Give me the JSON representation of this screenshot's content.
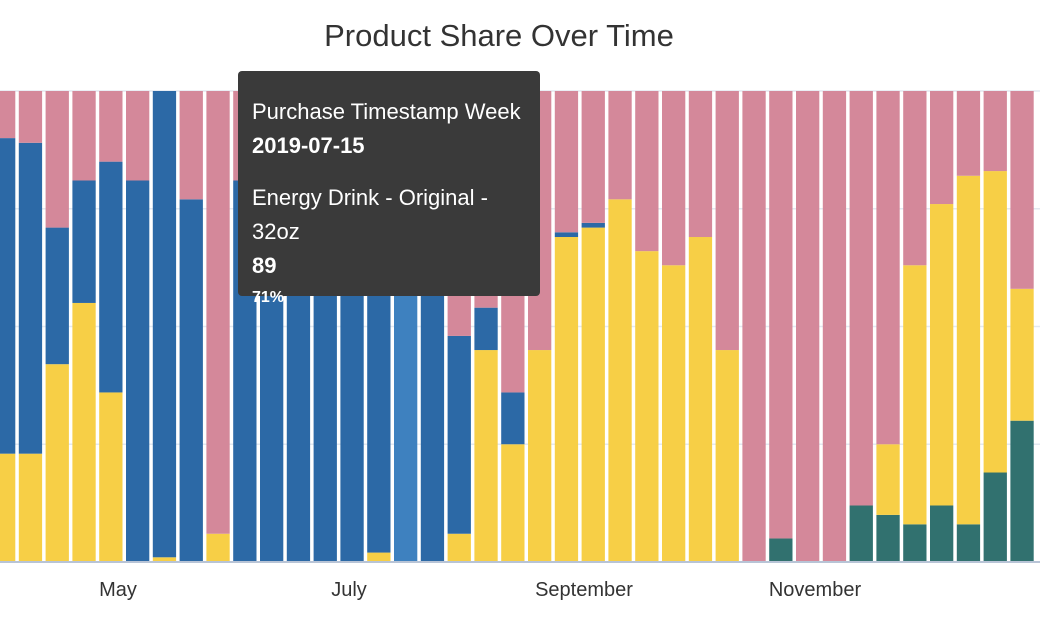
{
  "chart_data": {
    "type": "bar",
    "stacked": "percent",
    "title": "Product Share Over Time",
    "x_tick_labels": [
      "May",
      "July",
      "September",
      "November"
    ],
    "ylim": [
      0,
      100
    ],
    "grid": true,
    "colors": {
      "teal": "#31716f",
      "yellow": "#f7cf46",
      "blue": "#2c69a6",
      "pink": "#d4889a",
      "highlight": "#3e81bf",
      "axis": "#b8c4d6",
      "grid": "#e3e9f1"
    },
    "stack_order": [
      "teal",
      "yellow",
      "blue",
      "pink"
    ],
    "x": [
      "2019-04-01",
      "2019-04-08",
      "2019-04-15",
      "2019-04-22",
      "2019-04-29",
      "2019-05-06",
      "2019-05-13",
      "2019-05-20",
      "2019-05-27",
      "2019-06-03",
      "2019-06-10",
      "2019-06-17",
      "2019-06-24",
      "2019-07-01",
      "2019-07-08",
      "2019-07-15",
      "2019-07-22",
      "2019-07-29",
      "2019-08-05",
      "2019-08-12",
      "2019-08-19",
      "2019-08-26",
      "2019-09-02",
      "2019-09-09",
      "2019-09-16",
      "2019-09-23",
      "2019-09-30",
      "2019-10-07",
      "2019-10-14",
      "2019-10-21",
      "2019-10-28",
      "2019-11-04",
      "2019-11-11",
      "2019-11-18",
      "2019-11-25",
      "2019-12-02",
      "2019-12-09",
      "2019-12-16",
      "2019-12-23"
    ],
    "series": [
      {
        "key": "teal",
        "values": [
          0,
          0,
          0,
          0,
          0,
          0,
          0,
          0,
          0,
          0,
          0,
          0,
          0,
          0,
          0,
          0,
          0,
          0,
          0,
          0,
          0,
          0,
          0,
          0,
          0,
          0,
          0,
          0,
          0,
          5,
          0,
          0,
          12,
          10,
          8,
          12,
          8,
          19,
          30
        ]
      },
      {
        "key": "yellow",
        "values": [
          23,
          23,
          42,
          55,
          36,
          0,
          1,
          0,
          6,
          0,
          0,
          0,
          0,
          0,
          2,
          0,
          0,
          6,
          45,
          25,
          45,
          69,
          71,
          77,
          66,
          63,
          69,
          45,
          0,
          0,
          0,
          0,
          0,
          15,
          55,
          64,
          74,
          64,
          28
        ]
      },
      {
        "key": "blue",
        "values": [
          67,
          66,
          29,
          26,
          49,
          81,
          99,
          77,
          0,
          81,
          81,
          81,
          77,
          77,
          82,
          71,
          80,
          42,
          9,
          11,
          0,
          1,
          1,
          0,
          0,
          0,
          0,
          0,
          0,
          0,
          0,
          0,
          0,
          0,
          0,
          0,
          0,
          0,
          0
        ]
      },
      {
        "key": "pink",
        "values": [
          10,
          11,
          29,
          19,
          15,
          19,
          0,
          23,
          94,
          19,
          19,
          19,
          23,
          23,
          16,
          29,
          20,
          52,
          46,
          64,
          55,
          30,
          28,
          23,
          34,
          37,
          31,
          55,
          100,
          95,
          100,
          100,
          88,
          75,
          37,
          24,
          18,
          17,
          42
        ]
      }
    ],
    "highlight_index": 15,
    "tooltip": {
      "field_label": "Purchase Timestamp Week",
      "field_value": "2019-07-15",
      "series_label": "Energy Drink - Original - 32oz",
      "value": "89",
      "percent": "71%"
    }
  }
}
